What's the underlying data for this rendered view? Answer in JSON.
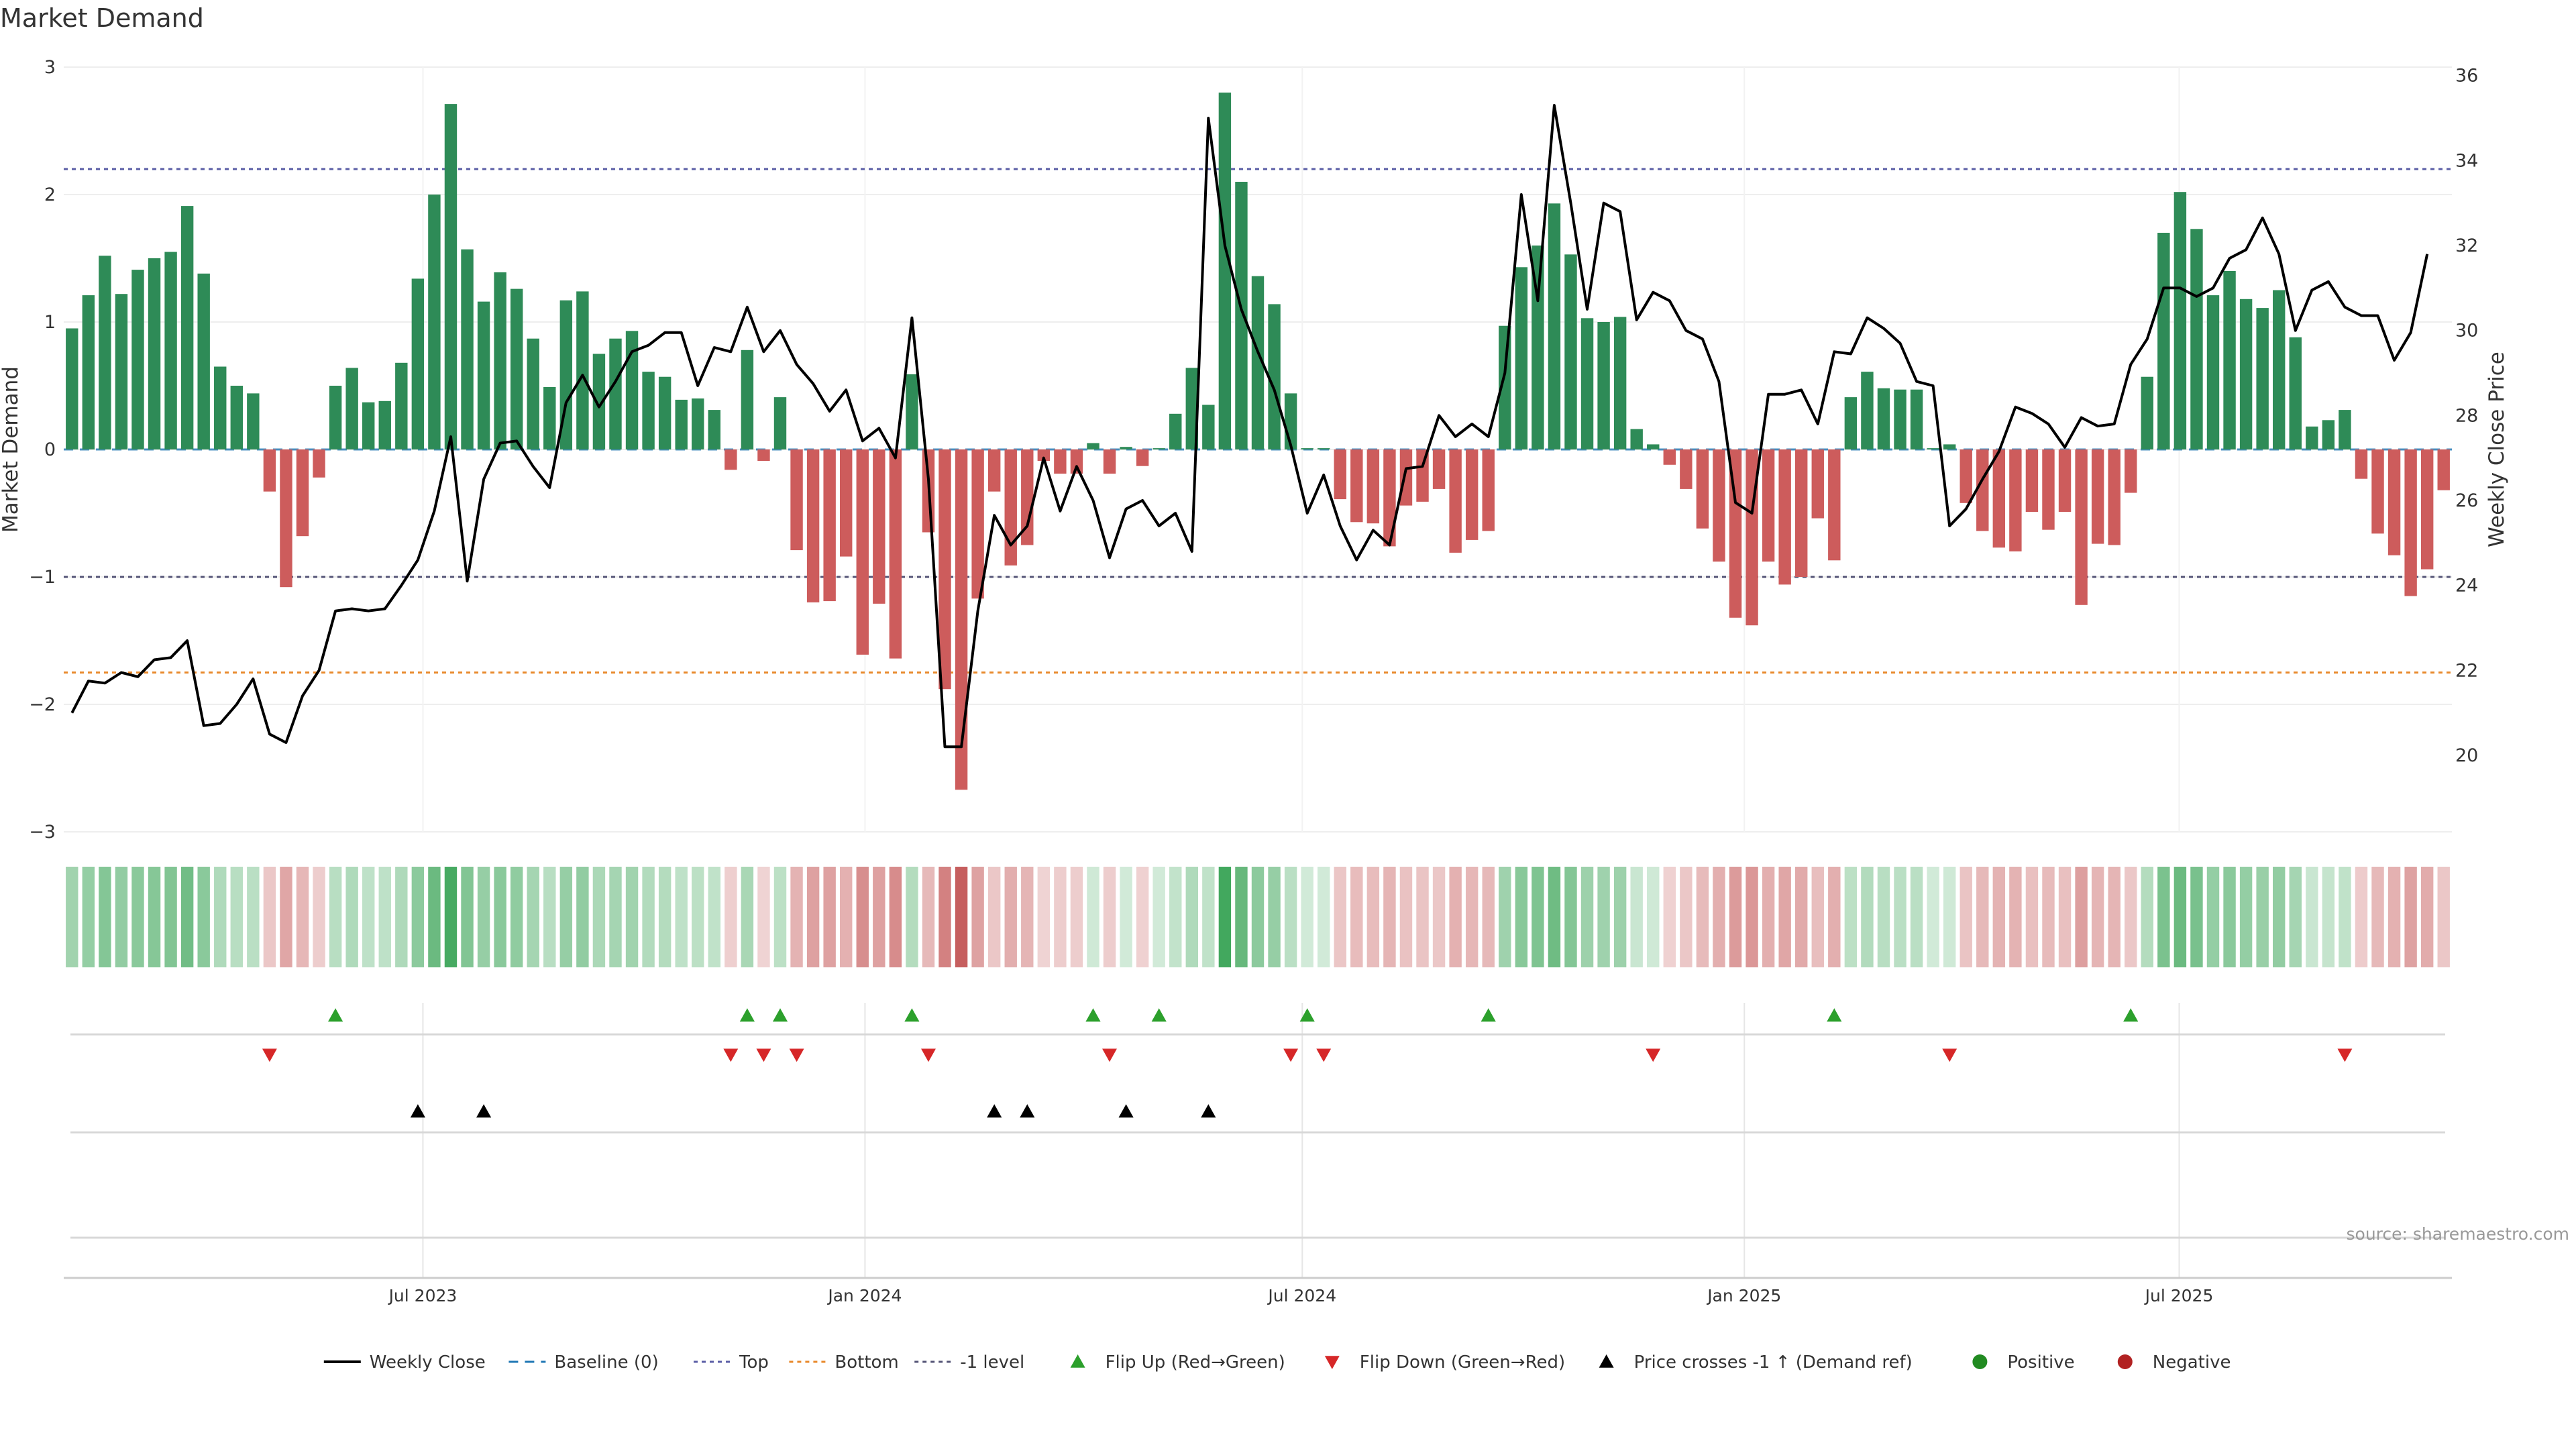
{
  "chart_data": {
    "type": "bar",
    "title": "Market Demand",
    "ylabel_left": "Market Demand",
    "ylabel_right": "Weekly Close Price",
    "ylim_left": [
      -3,
      3
    ],
    "ylim_right": [
      18.2,
      36.2
    ],
    "yticks_left": [
      {
        "v": 3,
        "t": "3"
      },
      {
        "v": 2,
        "t": "2"
      },
      {
        "v": 1,
        "t": "1"
      },
      {
        "v": 0,
        "t": "0"
      },
      {
        "v": -1,
        "t": "−1"
      },
      {
        "v": -2,
        "t": "−2"
      },
      {
        "v": -3,
        "t": "−3"
      }
    ],
    "yticks_right": [
      20,
      22,
      24,
      26,
      28,
      30,
      32,
      34,
      36
    ],
    "x_start": "2023-02-05",
    "x_end": "2025-10-19",
    "x_ticks": [
      {
        "date": "2023-07-01",
        "label": "Jul 2023"
      },
      {
        "date": "2024-01-01",
        "label": "Jan 2024"
      },
      {
        "date": "2024-07-01",
        "label": "Jul 2024"
      },
      {
        "date": "2025-01-01",
        "label": "Jan 2025"
      },
      {
        "date": "2025-07-01",
        "label": "Jul 2025"
      }
    ],
    "reference_lines": [
      {
        "name": "Top",
        "value": 2.2,
        "color": "#5b5ea6"
      },
      {
        "name": "Bottom",
        "value": -1.75,
        "color": "#e8892b"
      },
      {
        "name": "-1 level",
        "value": -1,
        "color": "#555577"
      }
    ],
    "demand": [
      0.95,
      1.21,
      1.52,
      1.22,
      1.41,
      1.5,
      1.55,
      1.91,
      1.38,
      0.65,
      0.5,
      0.44,
      -0.33,
      -1.08,
      -0.68,
      -0.22,
      0.5,
      0.64,
      0.37,
      0.38,
      0.68,
      1.34,
      2.0,
      2.71,
      1.57,
      1.16,
      1.39,
      1.26,
      0.87,
      0.49,
      1.17,
      1.24,
      0.75,
      0.87,
      0.93,
      0.61,
      0.57,
      0.39,
      0.4,
      0.31,
      -0.16,
      0.78,
      -0.09,
      0.41,
      -0.79,
      -1.2,
      -1.19,
      -0.84,
      -1.61,
      -1.21,
      -1.64,
      0.59,
      -0.65,
      -1.88,
      -2.67,
      -1.17,
      -0.33,
      -0.91,
      -0.75,
      -0.09,
      -0.19,
      -0.19,
      0.05,
      -0.19,
      0.02,
      -0.13,
      0.01,
      0.28,
      0.64,
      0.35,
      2.8,
      2.1,
      1.36,
      1.14,
      0.44,
      0.01,
      0.01,
      -0.39,
      -0.57,
      -0.58,
      -0.76,
      -0.44,
      -0.41,
      -0.31,
      -0.81,
      -0.71,
      -0.64,
      0.97,
      1.43,
      1.6,
      1.93,
      1.53,
      1.03,
      1.0,
      1.04,
      0.16,
      0.04,
      -0.12,
      -0.31,
      -0.62,
      -0.88,
      -1.32,
      -1.38,
      -0.88,
      -1.06,
      -1.0,
      -0.54,
      -0.87,
      0.41,
      0.61,
      0.48,
      0.47,
      0.47,
      0.01,
      0.04,
      -0.42,
      -0.64,
      -0.77,
      -0.8,
      -0.49,
      -0.63,
      -0.49,
      -1.22,
      -0.74,
      -0.75,
      -0.34,
      0.57,
      1.7,
      2.02,
      1.73,
      1.21,
      1.4,
      1.18,
      1.11,
      1.25,
      0.88,
      0.18,
      0.23,
      0.31,
      -0.23,
      -0.66,
      -0.83,
      -1.15,
      -0.94,
      -0.32
    ],
    "price": [
      21.0,
      21.75,
      21.7,
      21.95,
      21.85,
      22.25,
      22.3,
      22.7,
      20.7,
      20.75,
      21.2,
      21.8,
      20.5,
      20.3,
      21.4,
      22.0,
      23.4,
      23.45,
      23.4,
      23.45,
      24.0,
      24.6,
      25.75,
      27.5,
      24.1,
      26.5,
      27.35,
      27.4,
      26.8,
      26.3,
      28.3,
      28.95,
      28.2,
      28.8,
      29.5,
      29.65,
      29.95,
      29.95,
      28.7,
      29.6,
      29.5,
      30.55,
      29.5,
      30.0,
      29.2,
      28.75,
      28.1,
      28.6,
      27.4,
      27.7,
      27.0,
      30.3,
      26.5,
      20.2,
      20.2,
      23.4,
      25.65,
      24.95,
      25.4,
      27.0,
      25.75,
      26.8,
      26.0,
      24.65,
      25.8,
      26.0,
      25.4,
      25.7,
      24.8,
      35.0,
      32.0,
      30.5,
      29.5,
      28.6,
      27.3,
      25.7,
      26.6,
      25.4,
      24.6,
      25.3,
      24.95,
      26.75,
      26.8,
      28.0,
      27.5,
      27.8,
      27.5,
      29.0,
      33.2,
      30.7,
      35.3,
      33.0,
      30.5,
      33.0,
      32.8,
      30.25,
      30.9,
      30.7,
      30.0,
      29.8,
      28.8,
      25.95,
      25.7,
      28.5,
      28.5,
      28.6,
      27.8,
      29.5,
      29.45,
      30.3,
      30.05,
      29.7,
      28.8,
      28.7,
      25.4,
      25.8,
      26.5,
      27.15,
      28.2,
      28.05,
      27.8,
      27.25,
      27.95,
      27.75,
      27.8,
      29.2,
      29.8,
      31.0,
      31.0,
      30.8,
      31.0,
      31.7,
      31.9,
      32.65,
      31.8,
      30.0,
      30.95,
      31.15,
      30.55,
      30.35,
      30.35,
      29.3,
      29.95,
      31.8
    ],
    "flip_up_indices": [
      16,
      41,
      43,
      51,
      62,
      66,
      75,
      86,
      107,
      125
    ],
    "flip_down_indices": [
      12,
      40,
      42,
      44,
      52,
      63,
      74,
      76,
      96,
      114,
      138
    ],
    "price_cross_indices": [
      21,
      25,
      56,
      58,
      64,
      69
    ],
    "color_positive": "#2e8b57",
    "color_negative": "#cd5c5c",
    "color_line": "#000000",
    "color_flip_up": "#2ca02c",
    "color_flip_down": "#d62728",
    "color_cross": "#000000",
    "legend_position": "bottom",
    "legend": [
      {
        "label": "Weekly Close",
        "type": "line",
        "color": "#000000"
      },
      {
        "label": "Baseline (0)",
        "type": "dash",
        "color": "#1f77b4"
      },
      {
        "label": "Top",
        "type": "dot",
        "color": "#5b5ea6"
      },
      {
        "label": "Bottom",
        "type": "dot",
        "color": "#e8892b"
      },
      {
        "label": "-1 level",
        "type": "dot",
        "color": "#555577"
      },
      {
        "label": "Flip Up (Red→Green)",
        "type": "tri-up",
        "color": "#2ca02c"
      },
      {
        "label": "Flip Down (Green→Red)",
        "type": "tri-down",
        "color": "#d62728"
      },
      {
        "label": "Price crosses -1 ↑ (Demand ref)",
        "type": "tri-up",
        "color": "#000000"
      },
      {
        "label": "Positive",
        "type": "dot-marker",
        "color": "#228b22"
      },
      {
        "label": "Negative",
        "type": "dot-marker",
        "color": "#b22222"
      }
    ],
    "annotation": "source: sharemaestro.com"
  }
}
